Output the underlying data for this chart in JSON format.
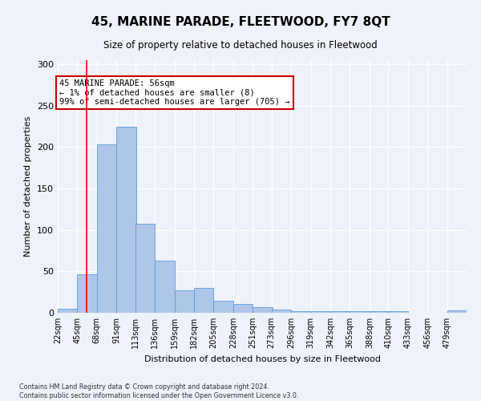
{
  "title": "45, MARINE PARADE, FLEETWOOD, FY7 8QT",
  "subtitle": "Size of property relative to detached houses in Fleetwood",
  "xlabel": "Distribution of detached houses by size in Fleetwood",
  "ylabel": "Number of detached properties",
  "bar_values": [
    5,
    46,
    203,
    225,
    107,
    63,
    27,
    30,
    15,
    11,
    7,
    4,
    2,
    2,
    2,
    2,
    2,
    2,
    0,
    0,
    3
  ],
  "bin_labels": [
    "22sqm",
    "45sqm",
    "68sqm",
    "91sqm",
    "113sqm",
    "136sqm",
    "159sqm",
    "182sqm",
    "205sqm",
    "228sqm",
    "251sqm",
    "273sqm",
    "296sqm",
    "319sqm",
    "342sqm",
    "365sqm",
    "388sqm",
    "410sqm",
    "433sqm",
    "456sqm",
    "479sqm"
  ],
  "bin_edges": [
    22,
    45,
    68,
    91,
    113,
    136,
    159,
    182,
    205,
    228,
    251,
    273,
    296,
    319,
    342,
    365,
    388,
    410,
    433,
    456,
    479
  ],
  "bar_color": "#aec6e8",
  "bar_edge_color": "#5b9bd5",
  "red_line_x": 56,
  "annotation_title": "45 MARINE PARADE: 56sqm",
  "annotation_line1": "← 1% of detached houses are smaller (8)",
  "annotation_line2": "99% of semi-detached houses are larger (705) →",
  "annotation_box_color": "#ffffff",
  "annotation_box_edge_color": "#cc0000",
  "ylim": [
    0,
    305
  ],
  "background_color": "#eef2fa",
  "grid_color": "#ffffff",
  "footer1": "Contains HM Land Registry data © Crown copyright and database right 2024.",
  "footer2": "Contains public sector information licensed under the Open Government Licence v3.0."
}
